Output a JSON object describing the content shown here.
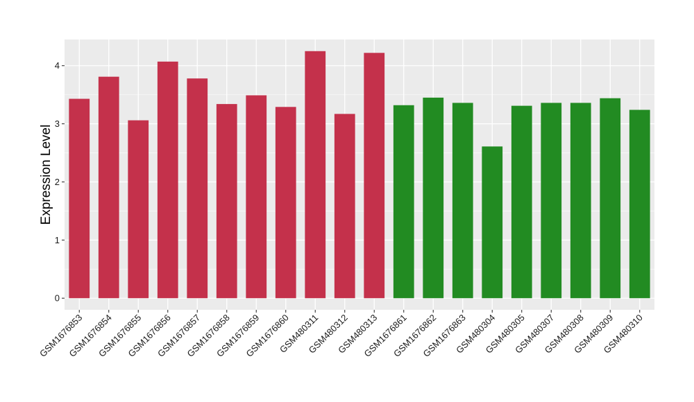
{
  "chart_data": {
    "type": "bar",
    "title": "",
    "xlabel": "",
    "ylabel": "Expression Level",
    "ylim": [
      -0.2,
      4.45
    ],
    "yticks": [
      0,
      1,
      2,
      3,
      4
    ],
    "grid": true,
    "legend": "none",
    "background_color": "#ebebeb",
    "categories": [
      "GSM1676853",
      "GSM1676854",
      "GSM1676855",
      "GSM1676856",
      "GSM1676857",
      "GSM1676858",
      "GSM1676859",
      "GSM1676860",
      "GSM480311",
      "GSM480312",
      "GSM480313",
      "GSM1676861",
      "GSM1676862",
      "GSM1676863",
      "GSM480304",
      "GSM480305",
      "GSM480307",
      "GSM480308",
      "GSM480309",
      "GSM480310"
    ],
    "values": [
      3.43,
      3.81,
      3.06,
      4.07,
      3.78,
      3.34,
      3.49,
      3.29,
      4.25,
      3.17,
      4.22,
      3.32,
      3.45,
      3.36,
      2.61,
      3.31,
      3.36,
      3.36,
      3.44,
      3.24
    ],
    "colors": [
      "#c4314b",
      "#c4314b",
      "#c4314b",
      "#c4314b",
      "#c4314b",
      "#c4314b",
      "#c4314b",
      "#c4314b",
      "#c4314b",
      "#c4314b",
      "#c4314b",
      "#228b22",
      "#228b22",
      "#228b22",
      "#228b22",
      "#228b22",
      "#228b22",
      "#228b22",
      "#228b22",
      "#228b22"
    ]
  }
}
